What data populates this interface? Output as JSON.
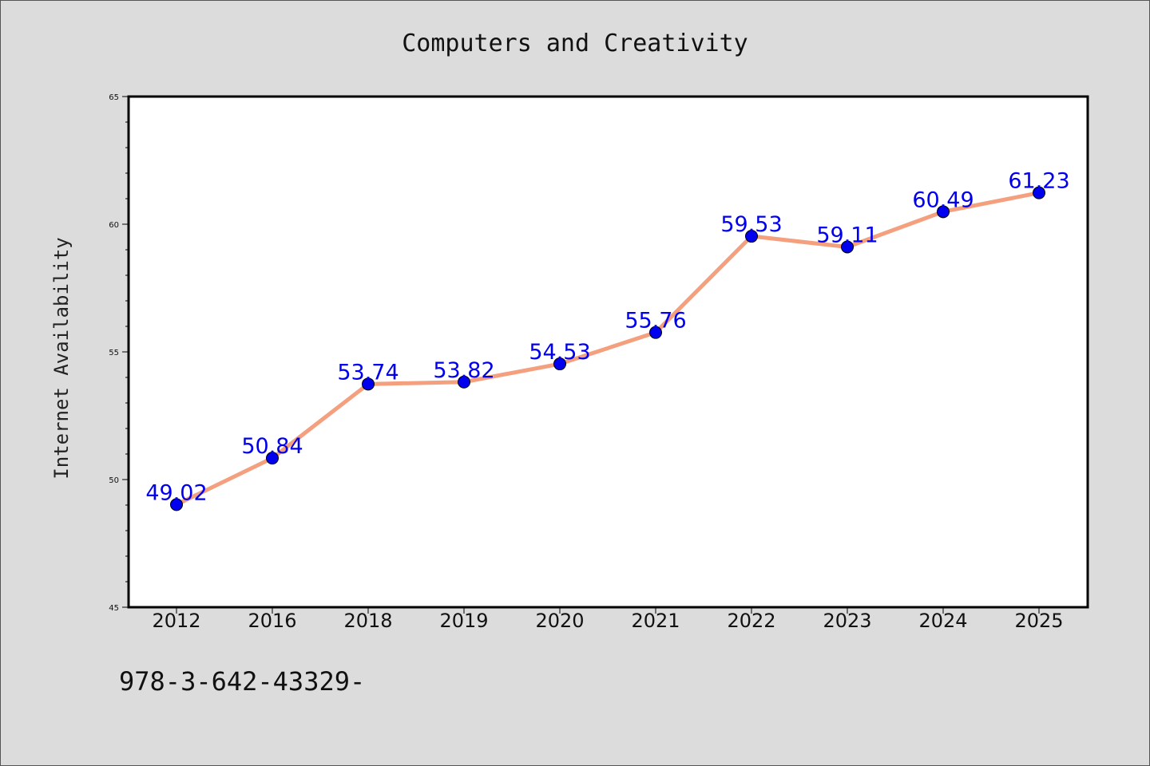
{
  "chart_data": {
    "type": "line",
    "title": "Computers and Creativity",
    "xlabel": "",
    "ylabel": "Internet Availability",
    "categories": [
      "2012",
      "2016",
      "2018",
      "2019",
      "2020",
      "2021",
      "2022",
      "2023",
      "2024",
      "2025"
    ],
    "series": [
      {
        "values": [
          49.02,
          50.84,
          53.74,
          53.82,
          54.53,
          55.76,
          59.53,
          59.11,
          60.49,
          61.23
        ]
      }
    ],
    "data_labels": [
      "49.02",
      "50.84",
      "53.74",
      "53.82",
      "54.53",
      "55.76",
      "59.53",
      "59.11",
      "60.49",
      "61.23"
    ],
    "ylim": [
      45,
      65
    ],
    "yticks": [
      "45",
      "50",
      "55",
      "60",
      "65"
    ],
    "grid": false,
    "legend": "none",
    "colors": {
      "line": "#f4a07e",
      "marker": "#0000ee",
      "label": "#0000ee",
      "plot_bg": "#ffffff",
      "figure_bg": "#dcdcdc"
    }
  },
  "footer_text": "978-3-642-43329-"
}
